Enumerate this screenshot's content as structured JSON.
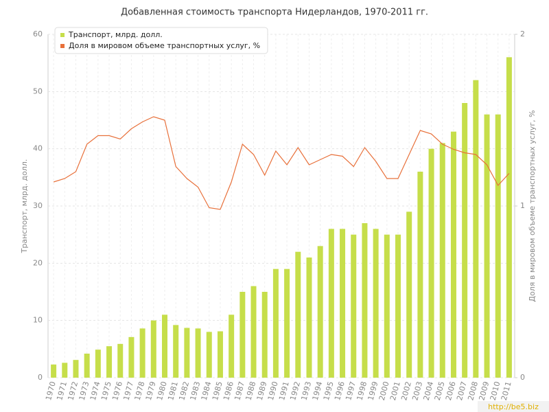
{
  "chart_data": {
    "type": "bar-line",
    "title": "Добавленная стоимость транспорта Нидерландов, 1970-2011 гг.",
    "ylabel": "Транспорт, млрд. долл.",
    "y2label": "Доля в мировом объеме транспортных услуг, %",
    "watermark": "http://be5.biz",
    "categories": [
      "1970",
      "1971",
      "1972",
      "1973",
      "1974",
      "1975",
      "1976",
      "1977",
      "1978",
      "1979",
      "1980",
      "1981",
      "1982",
      "1983",
      "1984",
      "1985",
      "1986",
      "1987",
      "1988",
      "1989",
      "1990",
      "1991",
      "1992",
      "1993",
      "1994",
      "1995",
      "1996",
      "1997",
      "1998",
      "1999",
      "2000",
      "2001",
      "2002",
      "2003",
      "2004",
      "2005",
      "2006",
      "2007",
      "2008",
      "2009",
      "2010",
      "2011"
    ],
    "series": [
      {
        "name": "Транспорт, млрд. долл.",
        "type": "bar",
        "color": "#c6de4a",
        "values": [
          2.3,
          2.6,
          3.1,
          4.2,
          4.9,
          5.5,
          5.9,
          7.1,
          8.6,
          10,
          11,
          9.2,
          8.7,
          8.6,
          8,
          8.1,
          11,
          15,
          16,
          15,
          19,
          19,
          22,
          21,
          23,
          26,
          26,
          25,
          27,
          26,
          25,
          25,
          29,
          36,
          40,
          41,
          43,
          48,
          52,
          46,
          46,
          56
        ]
      },
      {
        "name": "Доля в мировом объеме транспортных услуг, %",
        "type": "line",
        "axis": "y2",
        "color": "#e8703a",
        "values": [
          1.14,
          1.16,
          1.2,
          1.36,
          1.41,
          1.41,
          1.39,
          1.45,
          1.49,
          1.52,
          1.5,
          1.23,
          1.16,
          1.11,
          0.99,
          0.98,
          1.14,
          1.36,
          1.3,
          1.18,
          1.32,
          1.24,
          1.34,
          1.24,
          1.27,
          1.3,
          1.29,
          1.23,
          1.34,
          1.26,
          1.16,
          1.16,
          1.3,
          1.44,
          1.42,
          1.36,
          1.33,
          1.31,
          1.3,
          1.24,
          1.12,
          1.19
        ]
      }
    ],
    "ylim": [
      0,
      60
    ],
    "yticks": [
      0,
      10,
      20,
      30,
      40,
      50,
      60
    ],
    "y2lim": [
      0,
      2
    ],
    "y2ticks": [
      0,
      1,
      2
    ],
    "grid": true,
    "legend": "top-left"
  }
}
